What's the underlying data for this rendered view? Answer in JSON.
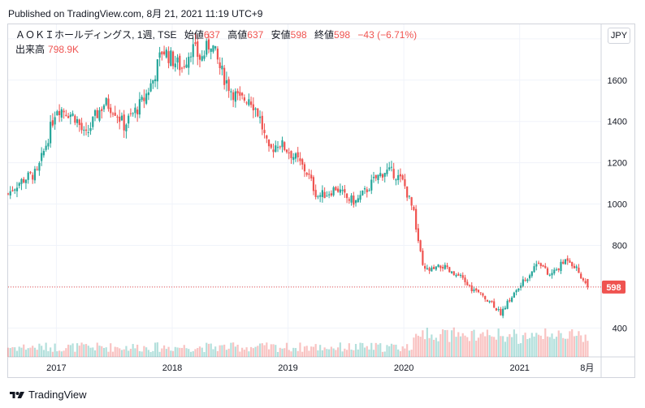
{
  "header": {
    "published": "Published on TradingView.com, 8月 21, 2021 11:19 UTC+9"
  },
  "legend": {
    "symbol": "ＡＯＫＩホールディングス, 1週, TSE",
    "open_label": "始値",
    "open": "637",
    "high_label": "高値",
    "high": "637",
    "low_label": "安値",
    "low": "598",
    "close_label": "終値",
    "close": "598",
    "change": "−43 (−6.71%)",
    "volume_label": "出来高",
    "volume": "798.9K"
  },
  "currency_button": "JPY",
  "footer": {
    "brand": "TradingView"
  },
  "colors": {
    "up": "#26a69a",
    "down": "#ef5350",
    "price_line": "#ef5350",
    "grid": "#f0f3fa"
  },
  "chart_data": {
    "type": "candlestick",
    "x_labels": [
      "2017",
      "2018",
      "2019",
      "2020",
      "2021",
      "8月"
    ],
    "y_ticks": [
      400,
      600,
      800,
      1000,
      1200,
      1400,
      1600,
      1800
    ],
    "y_tick_labels": [
      "400",
      "800",
      "1000",
      "1200",
      "1400",
      "1600",
      "1800"
    ],
    "ylim": [
      260,
      1870
    ],
    "last_price": 598,
    "last_price_label": "598",
    "price_path": [
      [
        "2016-08",
        1050
      ],
      [
        "2016-09",
        1100
      ],
      [
        "2016-10",
        1130
      ],
      [
        "2016-11",
        1150
      ],
      [
        "2016-12",
        1300
      ],
      [
        "2017-01",
        1470
      ],
      [
        "2017-02",
        1450
      ],
      [
        "2017-03",
        1420
      ],
      [
        "2017-04",
        1320
      ],
      [
        "2017-05",
        1420
      ],
      [
        "2017-06",
        1490
      ],
      [
        "2017-07",
        1460
      ],
      [
        "2017-08",
        1380
      ],
      [
        "2017-09",
        1440
      ],
      [
        "2017-10",
        1500
      ],
      [
        "2017-11",
        1600
      ],
      [
        "2017-12",
        1750
      ],
      [
        "2018-01",
        1700
      ],
      [
        "2018-02",
        1660
      ],
      [
        "2018-03",
        1760
      ],
      [
        "2018-04",
        1700
      ],
      [
        "2018-05",
        1790
      ],
      [
        "2018-06",
        1650
      ],
      [
        "2018-07",
        1560
      ],
      [
        "2018-08",
        1500
      ],
      [
        "2018-09",
        1520
      ],
      [
        "2018-10",
        1430
      ],
      [
        "2018-11",
        1250
      ],
      [
        "2018-12",
        1300
      ],
      [
        "2019-01",
        1260
      ],
      [
        "2019-02",
        1210
      ],
      [
        "2019-03",
        1150
      ],
      [
        "2019-04",
        1040
      ],
      [
        "2019-05",
        1050
      ],
      [
        "2019-06",
        1080
      ],
      [
        "2019-07",
        1030
      ],
      [
        "2019-08",
        1010
      ],
      [
        "2019-09",
        1060
      ],
      [
        "2019-10",
        1120
      ],
      [
        "2019-11",
        1160
      ],
      [
        "2019-12",
        1150
      ],
      [
        "2020-01",
        1100
      ],
      [
        "2020-02",
        960
      ],
      [
        "2020-03",
        680
      ],
      [
        "2020-04",
        680
      ],
      [
        "2020-05",
        700
      ],
      [
        "2020-06",
        660
      ],
      [
        "2020-07",
        640
      ],
      [
        "2020-08",
        590
      ],
      [
        "2020-09",
        560
      ],
      [
        "2020-10",
        530
      ],
      [
        "2020-11",
        470
      ],
      [
        "2020-12",
        540
      ],
      [
        "2021-01",
        600
      ],
      [
        "2021-02",
        660
      ],
      [
        "2021-03",
        730
      ],
      [
        "2021-04",
        650
      ],
      [
        "2021-05",
        690
      ],
      [
        "2021-06",
        740
      ],
      [
        "2021-07",
        680
      ],
      [
        "2021-08",
        598
      ]
    ]
  }
}
